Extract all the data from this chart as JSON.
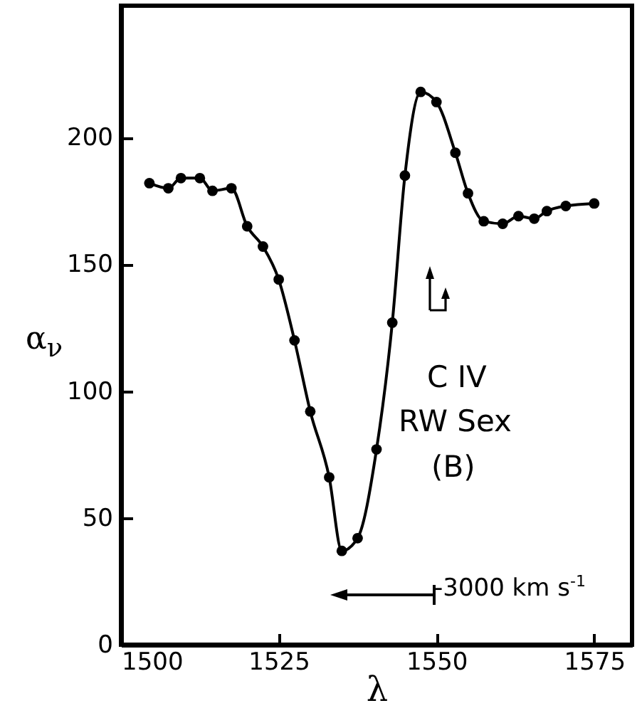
{
  "chart_data": {
    "type": "line",
    "xlabel": "λ",
    "ylabel": "α$_{ν}$",
    "xlim": [
      1500,
      1581
    ],
    "ylim": [
      0,
      252
    ],
    "xticks": [
      1500,
      1525,
      1550,
      1575
    ],
    "yticks": [
      0,
      50,
      100,
      150,
      200
    ],
    "marker": "circle",
    "annotations": [
      "C IV",
      "RW Sex",
      "(B)",
      "-3000 km s$^{-1}$"
    ],
    "x": [
      1504.5,
      1507.5,
      1509.5,
      1512.5,
      1514.5,
      1517.5,
      1520,
      1522.5,
      1525,
      1527.5,
      1530,
      1533,
      1535,
      1537.5,
      1540.5,
      1543,
      1545,
      1547.5,
      1550,
      1553,
      1555,
      1557.5,
      1560.5,
      1563,
      1565.5,
      1567.5,
      1570.5,
      1575
    ],
    "series": [
      {
        "color": "#000000",
        "values": [
          182,
          180,
          184,
          184,
          179,
          180,
          165,
          157,
          144,
          120,
          92,
          66,
          37,
          42,
          77,
          127,
          185,
          218,
          214,
          194,
          178,
          167,
          166,
          169,
          168,
          171,
          173,
          174
        ]
      }
    ]
  }
}
